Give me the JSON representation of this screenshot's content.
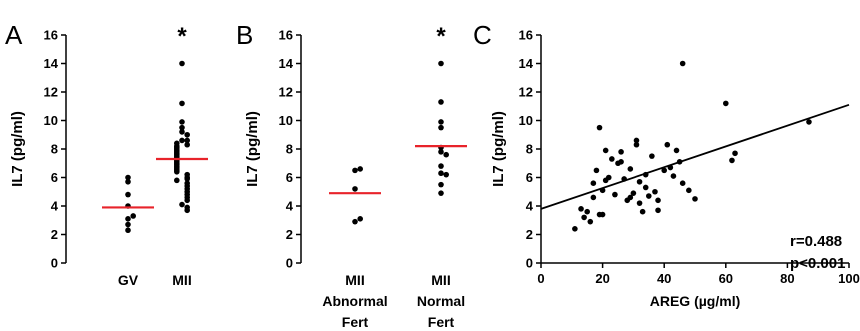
{
  "chart_data": [
    {
      "type": "scatter",
      "panel": "A",
      "ylabel": "IL7 (pg/ml)",
      "ylim": [
        0,
        16
      ],
      "yticks": [
        "0",
        "2",
        "4",
        "6",
        "8",
        "10",
        "12",
        "14",
        "16"
      ],
      "categories": [
        "GV",
        "MII"
      ],
      "significance": [
        "",
        "*"
      ],
      "mean_line_color": "#e8232a",
      "series": [
        {
          "category": "GV",
          "mean": 3.9,
          "values": [
            2.3,
            2.7,
            3.1,
            3.3,
            4.0,
            4.8,
            5.7,
            6.0
          ]
        },
        {
          "category": "MII",
          "mean": 7.3,
          "values": [
            14.0,
            11.2,
            9.9,
            9.5,
            9.2,
            9.0,
            8.6,
            8.6,
            8.4,
            8.3,
            8.2,
            8.1,
            8.0,
            7.9,
            7.8,
            7.7,
            7.6,
            7.5,
            7.4,
            7.3,
            7.2,
            7.1,
            7.0,
            6.9,
            6.8,
            6.7,
            6.6,
            6.5,
            6.4,
            6.2,
            6.0,
            5.9,
            5.8,
            5.6,
            5.4,
            5.2,
            5.0,
            4.8,
            4.6,
            4.4,
            4.1,
            3.9,
            3.7
          ]
        }
      ]
    },
    {
      "type": "scatter",
      "panel": "B",
      "ylabel": "IL7 (pg/ml)",
      "ylim": [
        0,
        16
      ],
      "yticks": [
        "0",
        "2",
        "4",
        "6",
        "8",
        "10",
        "12",
        "14",
        "16"
      ],
      "categories": [
        [
          "MII",
          "Abnormal",
          "Fert"
        ],
        [
          "MII",
          "Normal",
          "Fert"
        ]
      ],
      "significance": [
        "",
        "*"
      ],
      "mean_line_color": "#e8232a",
      "series": [
        {
          "category": "MII Abnormal Fert",
          "mean": 4.9,
          "values": [
            2.9,
            3.1,
            5.2,
            6.5,
            6.6
          ]
        },
        {
          "category": "MII Normal Fert",
          "mean": 8.2,
          "values": [
            14.0,
            11.3,
            9.9,
            9.5,
            8.1,
            7.8,
            7.6,
            6.8,
            6.3,
            6.2,
            5.5,
            4.9
          ]
        }
      ]
    },
    {
      "type": "scatter",
      "panel": "C",
      "xlabel": "AREG (µg/ml)",
      "ylabel": "IL7 (pg/ml)",
      "xlim": [
        0,
        100
      ],
      "ylim": [
        0,
        16
      ],
      "xticks": [
        "0",
        "20",
        "40",
        "60",
        "80",
        "100"
      ],
      "yticks": [
        "0",
        "2",
        "4",
        "6",
        "8",
        "10",
        "12",
        "14",
        "16"
      ],
      "regression": {
        "x": [
          0,
          100
        ],
        "y": [
          3.8,
          11.1
        ]
      },
      "annotations": [
        "r=0.488",
        "p<0.001"
      ],
      "points": [
        [
          11,
          2.4
        ],
        [
          13,
          3.8
        ],
        [
          14,
          3.2
        ],
        [
          15,
          3.6
        ],
        [
          16,
          2.9
        ],
        [
          17,
          4.6
        ],
        [
          17,
          5.6
        ],
        [
          18,
          6.5
        ],
        [
          19,
          9.5
        ],
        [
          19,
          3.4
        ],
        [
          20,
          5.1
        ],
        [
          20,
          3.4
        ],
        [
          21,
          5.8
        ],
        [
          21,
          7.9
        ],
        [
          22,
          6.0
        ],
        [
          23,
          7.3
        ],
        [
          24,
          4.8
        ],
        [
          25,
          7.0
        ],
        [
          26,
          7.8
        ],
        [
          26,
          7.1
        ],
        [
          27,
          5.9
        ],
        [
          28,
          4.4
        ],
        [
          29,
          6.6
        ],
        [
          29,
          4.6
        ],
        [
          30,
          4.9
        ],
        [
          31,
          8.6
        ],
        [
          31,
          8.3
        ],
        [
          32,
          5.7
        ],
        [
          32,
          4.2
        ],
        [
          33,
          3.6
        ],
        [
          34,
          6.2
        ],
        [
          34,
          5.3
        ],
        [
          35,
          4.7
        ],
        [
          36,
          7.5
        ],
        [
          37,
          5.0
        ],
        [
          38,
          4.4
        ],
        [
          38,
          3.7
        ],
        [
          40,
          6.5
        ],
        [
          41,
          8.3
        ],
        [
          42,
          6.7
        ],
        [
          43,
          6.1
        ],
        [
          44,
          7.9
        ],
        [
          45,
          7.1
        ],
        [
          46,
          14.0
        ],
        [
          46,
          5.6
        ],
        [
          48,
          5.1
        ],
        [
          50,
          4.5
        ],
        [
          60,
          11.2
        ],
        [
          62,
          7.2
        ],
        [
          63,
          7.7
        ],
        [
          87,
          9.9
        ]
      ]
    }
  ],
  "labels": {
    "panel_a": "A",
    "panel_b": "B",
    "panel_c": "C",
    "star": "*",
    "r_text": "r=0.488",
    "p_text": "p<0.001"
  }
}
